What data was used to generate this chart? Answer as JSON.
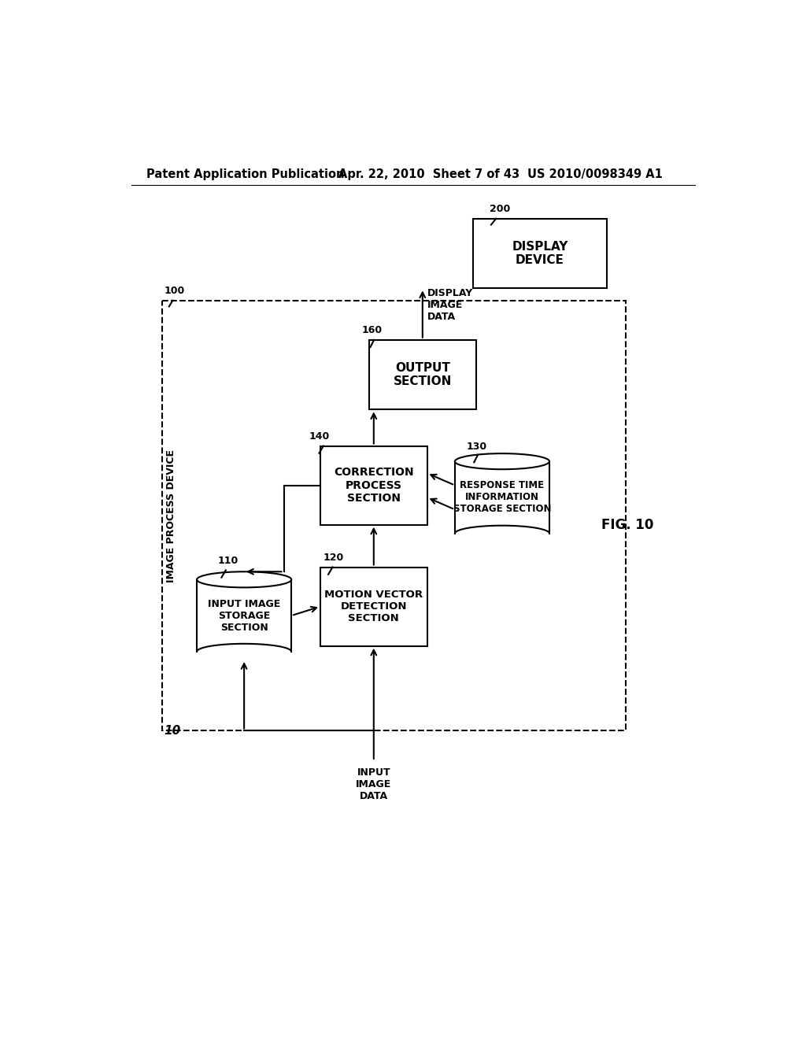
{
  "bg_color": "#ffffff",
  "header_left": "Patent Application Publication",
  "header_mid": "Apr. 22, 2010  Sheet 7 of 43",
  "header_right": "US 2010/0098349 A1",
  "fig_label": "FIG. 10"
}
